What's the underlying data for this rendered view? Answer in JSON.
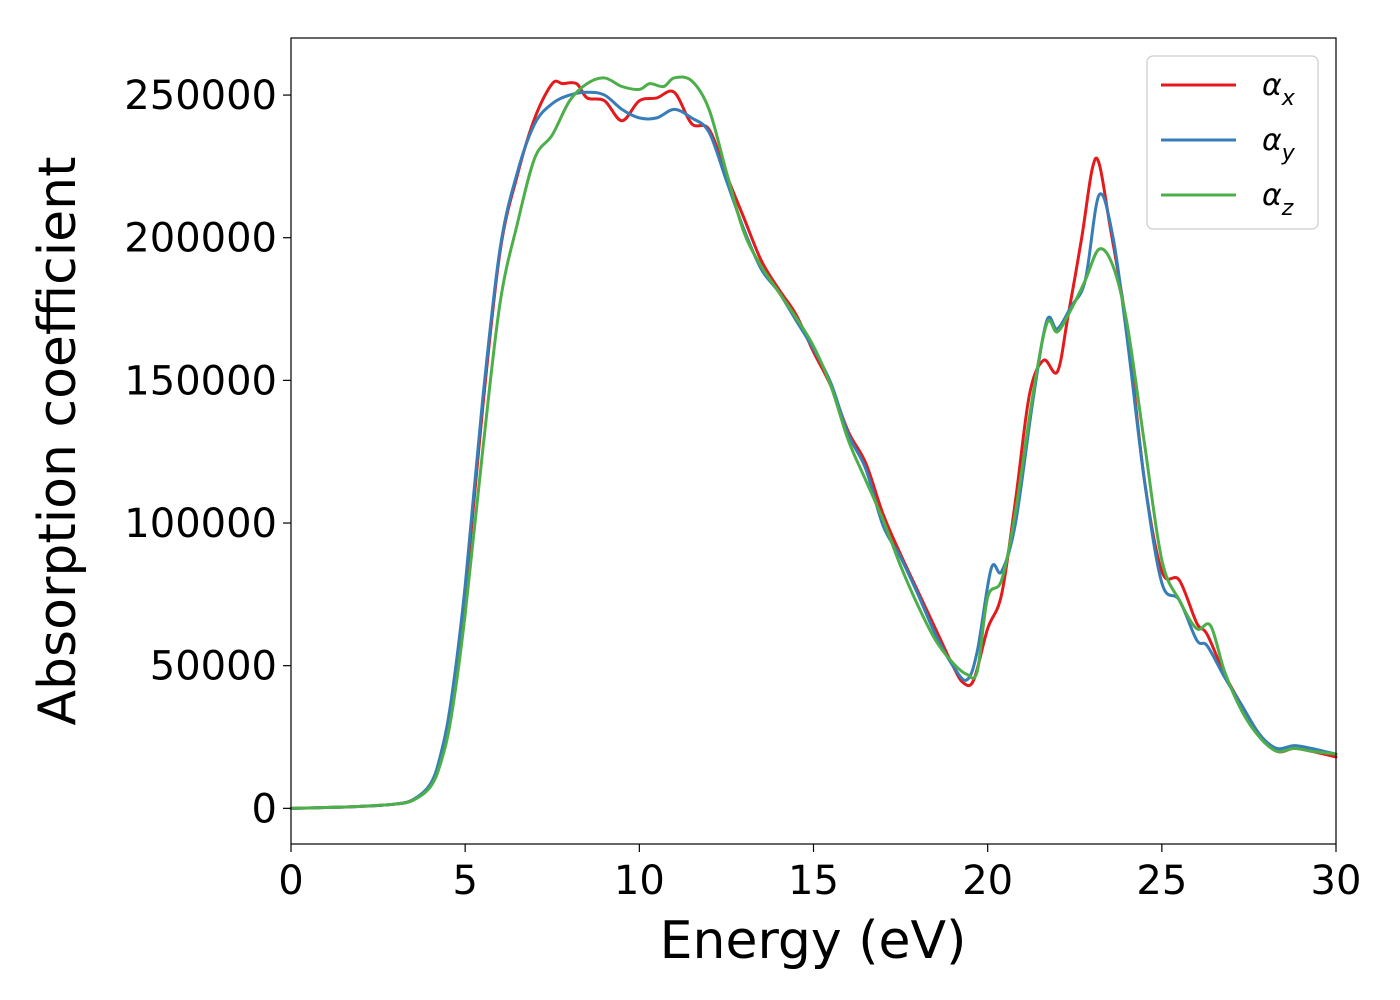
{
  "chart_data": {
    "type": "line",
    "title": "",
    "xlabel": "Energy (eV)",
    "ylabel": "Absorption coefficient",
    "xlim": [
      0,
      30
    ],
    "ylim": [
      -12500,
      270000
    ],
    "xticks": [
      0,
      5,
      10,
      15,
      20,
      25,
      30
    ],
    "xtick_labels": [
      "0",
      "5",
      "10",
      "15",
      "20",
      "25",
      "30"
    ],
    "yticks": [
      0,
      50000,
      100000,
      150000,
      200000,
      250000
    ],
    "ytick_labels": [
      "0",
      "50000",
      "100000",
      "150000",
      "200000",
      "250000"
    ],
    "grid": false,
    "legend_position": "top-right",
    "series": [
      {
        "name": "α_x",
        "legend_base": "α",
        "legend_sub": "x",
        "color": "#e41a1c",
        "x": [
          0,
          1,
          2,
          3,
          3.5,
          4,
          4.3,
          4.6,
          5,
          5.5,
          6,
          6.5,
          7,
          7.5,
          7.8,
          8.2,
          8.5,
          9,
          9.5,
          10,
          10.5,
          11,
          11.5,
          12,
          12.5,
          13,
          13.5,
          14,
          14.5,
          15,
          15.5,
          16,
          16.5,
          17,
          17.5,
          18,
          18.5,
          19,
          19.3,
          19.6,
          20,
          20.4,
          20.8,
          21.2,
          21.6,
          22,
          22.3,
          22.7,
          23,
          23.2,
          23.5,
          24,
          24.5,
          25,
          25.5,
          26,
          26.3,
          26.8,
          27.3,
          27.8,
          28.3,
          28.8,
          29.3,
          30
        ],
        "y": [
          0,
          300,
          700,
          1500,
          3000,
          8000,
          18000,
          36000,
          75000,
          140000,
          195000,
          222000,
          242000,
          254000,
          254000,
          254000,
          249000,
          248000,
          241000,
          248000,
          249000,
          251000,
          240000,
          238000,
          222000,
          207000,
          192000,
          182000,
          173000,
          160000,
          148000,
          132000,
          121000,
          103000,
          89000,
          76000,
          63000,
          50000,
          44000,
          45000,
          63000,
          75000,
          108000,
          145000,
          157000,
          153000,
          172000,
          200000,
          224000,
          226000,
          205000,
          168000,
          115000,
          83000,
          80000,
          65000,
          61000,
          47000,
          36000,
          26000,
          20000,
          21000,
          20000,
          18000
        ]
      },
      {
        "name": "α_y",
        "legend_base": "α",
        "legend_sub": "y",
        "color": "#377eb8",
        "x": [
          0,
          1,
          2,
          3,
          3.5,
          4,
          4.3,
          4.6,
          5,
          5.5,
          6,
          6.5,
          7,
          7.5,
          8,
          8.5,
          9,
          9.5,
          10,
          10.5,
          11,
          11.5,
          12,
          12.5,
          13,
          13.5,
          14,
          14.5,
          15,
          15.5,
          16,
          16.5,
          17,
          17.5,
          18,
          18.5,
          19,
          19.4,
          19.7,
          20.1,
          20.4,
          20.8,
          21.3,
          21.7,
          22,
          22.4,
          22.8,
          23.2,
          23.6,
          24,
          24.5,
          25,
          25.5,
          26,
          26.3,
          26.8,
          27.3,
          27.8,
          28.3,
          28.8,
          29.3,
          30
        ],
        "y": [
          0,
          300,
          700,
          1500,
          3000,
          8500,
          19000,
          38000,
          78000,
          143000,
          196000,
          223000,
          240000,
          247000,
          250000,
          251000,
          250000,
          245000,
          242000,
          242000,
          245000,
          242000,
          237000,
          220000,
          203000,
          189000,
          181000,
          171000,
          161000,
          149000,
          131000,
          119000,
          99000,
          88000,
          75000,
          61000,
          50000,
          45000,
          55000,
          84000,
          83000,
          100000,
          143000,
          171000,
          168000,
          176000,
          185000,
          215000,
          200000,
          165000,
          115000,
          79000,
          73000,
          59000,
          57000,
          46000,
          36000,
          26000,
          21000,
          22000,
          21000,
          19000
        ]
      },
      {
        "name": "α_z",
        "legend_base": "α",
        "legend_sub": "z",
        "color": "#4daf4a",
        "x": [
          0,
          1,
          2,
          3,
          3.5,
          4,
          4.3,
          4.6,
          5,
          5.5,
          6,
          6.5,
          7,
          7.5,
          8,
          8.5,
          9,
          9.5,
          10,
          10.3,
          10.7,
          11,
          11.5,
          12,
          12.5,
          13,
          13.5,
          14,
          14.5,
          15,
          15.5,
          16,
          16.5,
          17,
          17.5,
          18,
          18.5,
          19,
          19.4,
          19.7,
          20,
          20.4,
          20.8,
          21.3,
          21.7,
          22,
          22.4,
          22.8,
          23.2,
          23.6,
          24,
          24.5,
          25,
          25.5,
          26,
          26.4,
          26.8,
          27.3,
          27.8,
          28.3,
          28.8,
          29.3,
          30
        ],
        "y": [
          0,
          300,
          700,
          1500,
          2800,
          7500,
          16000,
          32000,
          68000,
          125000,
          177000,
          205000,
          228000,
          236000,
          248000,
          254000,
          256000,
          253000,
          252000,
          254000,
          253000,
          256000,
          255000,
          245000,
          223000,
          202000,
          190000,
          181000,
          172000,
          162000,
          148000,
          129000,
          115000,
          101000,
          85000,
          71000,
          59000,
          51000,
          47000,
          48000,
          74000,
          80000,
          104000,
          145000,
          170000,
          167000,
          175000,
          185000,
          196000,
          190000,
          170000,
          128000,
          87000,
          73000,
          63000,
          64000,
          48000,
          34000,
          25000,
          20000,
          21000,
          20000,
          19000
        ]
      }
    ]
  }
}
